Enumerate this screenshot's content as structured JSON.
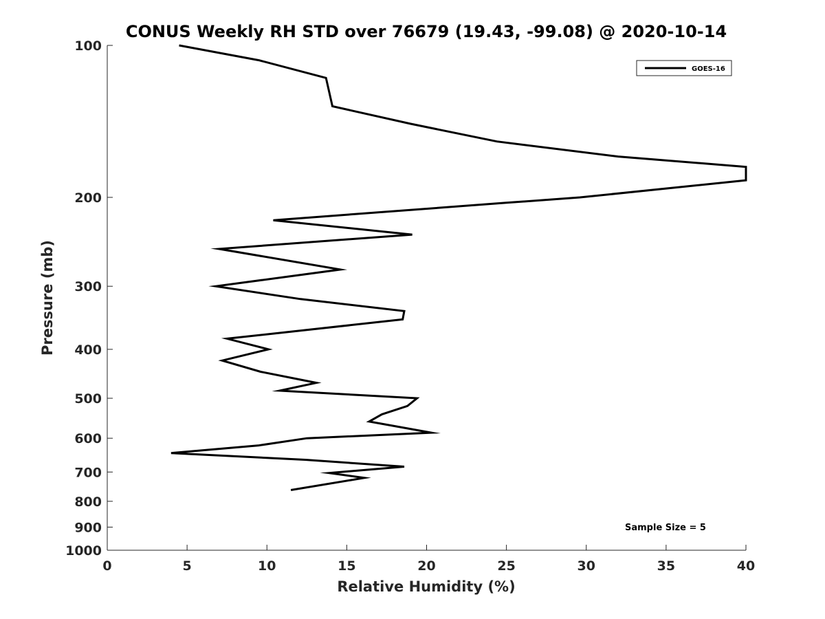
{
  "chart_data": {
    "type": "line",
    "title": "CONUS Weekly RH STD over 76679 (19.43, -99.08) @ 2020-10-14",
    "xlabel": "Relative Humidity (%)",
    "ylabel": "Pressure (mb)",
    "xlim": [
      0,
      40
    ],
    "ylim": [
      100,
      1000
    ],
    "yscale": "log",
    "yreversed": true,
    "grid": false,
    "legend_position": "top-right",
    "x_ticks": [
      0,
      5,
      10,
      15,
      20,
      25,
      30,
      35,
      40
    ],
    "x_tick_labels": [
      "0",
      "5",
      "10",
      "15",
      "20",
      "25",
      "30",
      "35",
      "40"
    ],
    "y_ticks": [
      100,
      200,
      300,
      400,
      500,
      600,
      700,
      800,
      900,
      1000
    ],
    "y_tick_labels": [
      "100",
      "200",
      "300",
      "400",
      "500",
      "600",
      "700",
      "800",
      "900",
      "1000"
    ],
    "series": [
      {
        "name": "GOES-16",
        "color": "#000000",
        "points": [
          {
            "rh": 4.5,
            "p": 100
          },
          {
            "rh": 9.5,
            "p": 107
          },
          {
            "rh": 13.7,
            "p": 116
          },
          {
            "rh": 14.1,
            "p": 132
          },
          {
            "rh": 19.0,
            "p": 143
          },
          {
            "rh": 24.4,
            "p": 155
          },
          {
            "rh": 32.0,
            "p": 166
          },
          {
            "rh": 40.0,
            "p": 174
          },
          {
            "rh": 40.0,
            "p": 185
          },
          {
            "rh": 29.6,
            "p": 200
          },
          {
            "rh": 25.0,
            "p": 205
          },
          {
            "rh": 10.4,
            "p": 222
          },
          {
            "rh": 19.1,
            "p": 237
          },
          {
            "rh": 7.0,
            "p": 253
          },
          {
            "rh": 14.6,
            "p": 278
          },
          {
            "rh": 6.8,
            "p": 300
          },
          {
            "rh": 12.1,
            "p": 318
          },
          {
            "rh": 18.6,
            "p": 336
          },
          {
            "rh": 18.5,
            "p": 349
          },
          {
            "rh": 7.5,
            "p": 381
          },
          {
            "rh": 10.1,
            "p": 400
          },
          {
            "rh": 7.2,
            "p": 421
          },
          {
            "rh": 9.6,
            "p": 443
          },
          {
            "rh": 13.1,
            "p": 466
          },
          {
            "rh": 10.8,
            "p": 483
          },
          {
            "rh": 19.4,
            "p": 500
          },
          {
            "rh": 18.8,
            "p": 518
          },
          {
            "rh": 17.2,
            "p": 538
          },
          {
            "rh": 16.4,
            "p": 556
          },
          {
            "rh": 20.3,
            "p": 585
          },
          {
            "rh": 12.5,
            "p": 600
          },
          {
            "rh": 9.5,
            "p": 620
          },
          {
            "rh": 4.0,
            "p": 642
          },
          {
            "rh": 12.4,
            "p": 662
          },
          {
            "rh": 18.6,
            "p": 683
          },
          {
            "rh": 13.9,
            "p": 703
          },
          {
            "rh": 16.1,
            "p": 719
          },
          {
            "rh": 11.5,
            "p": 760
          }
        ]
      }
    ],
    "legend_entries": [
      "GOES-16"
    ],
    "annotations": [
      {
        "text": "Sample Size = 5",
        "position": "bottom-right"
      }
    ]
  }
}
